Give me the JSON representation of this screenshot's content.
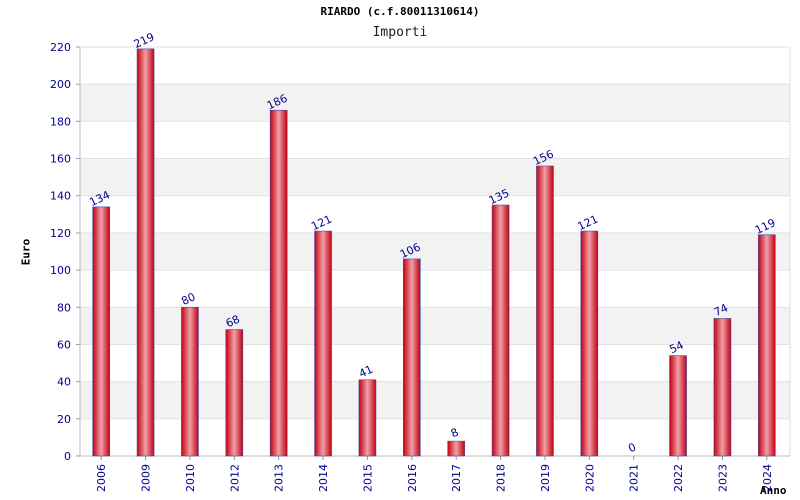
{
  "chart_data": {
    "type": "bar",
    "title": "RIARDO (c.f.80011310614)",
    "subtitle": "Importi",
    "xlabel": "Anno",
    "ylabel": "Euro",
    "categories": [
      "2006",
      "2009",
      "2010",
      "2012",
      "2013",
      "2014",
      "2015",
      "2016",
      "2017",
      "2018",
      "2019",
      "2020",
      "2021",
      "2022",
      "2023",
      "2024"
    ],
    "values": [
      134,
      219,
      80,
      68,
      186,
      121,
      41,
      106,
      8,
      135,
      156,
      121,
      0,
      54,
      74,
      119
    ],
    "ylim": [
      0,
      220
    ],
    "yticks": [
      0,
      20,
      40,
      60,
      80,
      100,
      120,
      140,
      160,
      180,
      200,
      220
    ],
    "grid": true,
    "legend": "none"
  },
  "colors": {
    "bar_edge": "#c40010",
    "bar_mid": "#f0a0a8",
    "bar_outline": "#4a4aa0",
    "tick_label": "#00008b",
    "band": "#f2f2f2",
    "grid": "#e2e2e2"
  }
}
